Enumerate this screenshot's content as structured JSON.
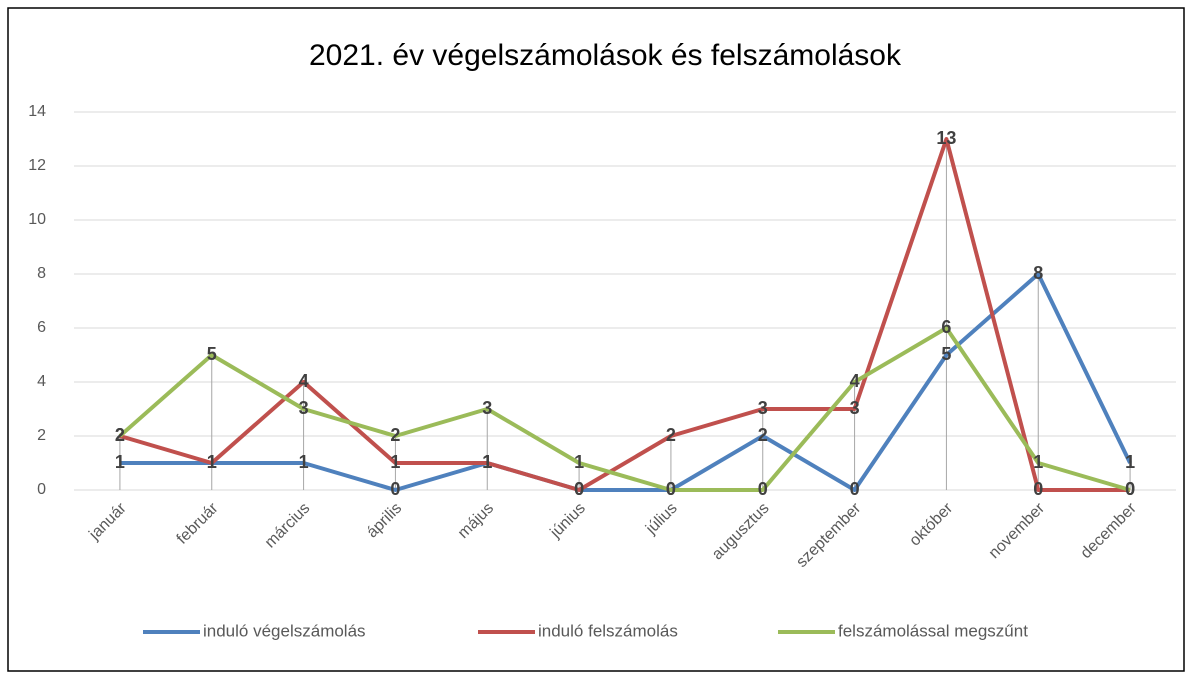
{
  "chart_data": {
    "type": "line",
    "title": "2021. év végelszámolások és felszámolások",
    "categories": [
      "január",
      "február",
      "március",
      "április",
      "május",
      "június",
      "július",
      "augusztus",
      "szeptember",
      "október",
      "november",
      "december"
    ],
    "series": [
      {
        "name": "induló végelszámolás",
        "color": "#4f81bd",
        "values": [
          1,
          1,
          1,
          0,
          1,
          0,
          0,
          2,
          0,
          5,
          8,
          1
        ]
      },
      {
        "name": "induló felszámolás",
        "color": "#c0504d",
        "values": [
          2,
          1,
          4,
          1,
          1,
          0,
          2,
          3,
          3,
          13,
          0,
          0
        ]
      },
      {
        "name": "felszámolással megszűnt",
        "color": "#9bbb59",
        "values": [
          2,
          5,
          3,
          2,
          3,
          1,
          0,
          0,
          4,
          6,
          1,
          0
        ]
      }
    ],
    "ylim": [
      0,
      14
    ],
    "yticks": [
      0,
      2,
      4,
      6,
      8,
      10,
      12,
      14
    ],
    "grid": true,
    "legend": "bottom"
  }
}
